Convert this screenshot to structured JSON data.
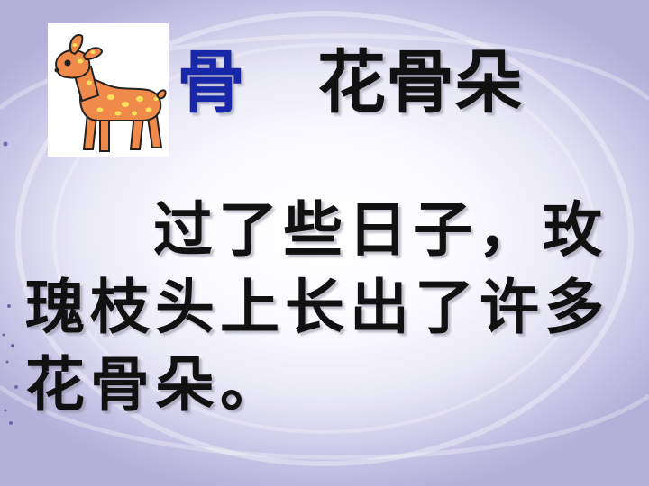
{
  "title": {
    "character": "骨",
    "word": "花骨朵"
  },
  "passage": {
    "line1": "过了些日子，玫",
    "line2": "瑰枝头上长出了许多",
    "line3": "花骨朵。"
  },
  "image": {
    "icon": "deer-icon",
    "colors": {
      "body": "#f08a4b",
      "spots": "#f7e35a",
      "outline": "#222222"
    }
  },
  "colors": {
    "title_character": "#1826a8",
    "text": "#111111",
    "background_edge": "#b4b0da"
  }
}
